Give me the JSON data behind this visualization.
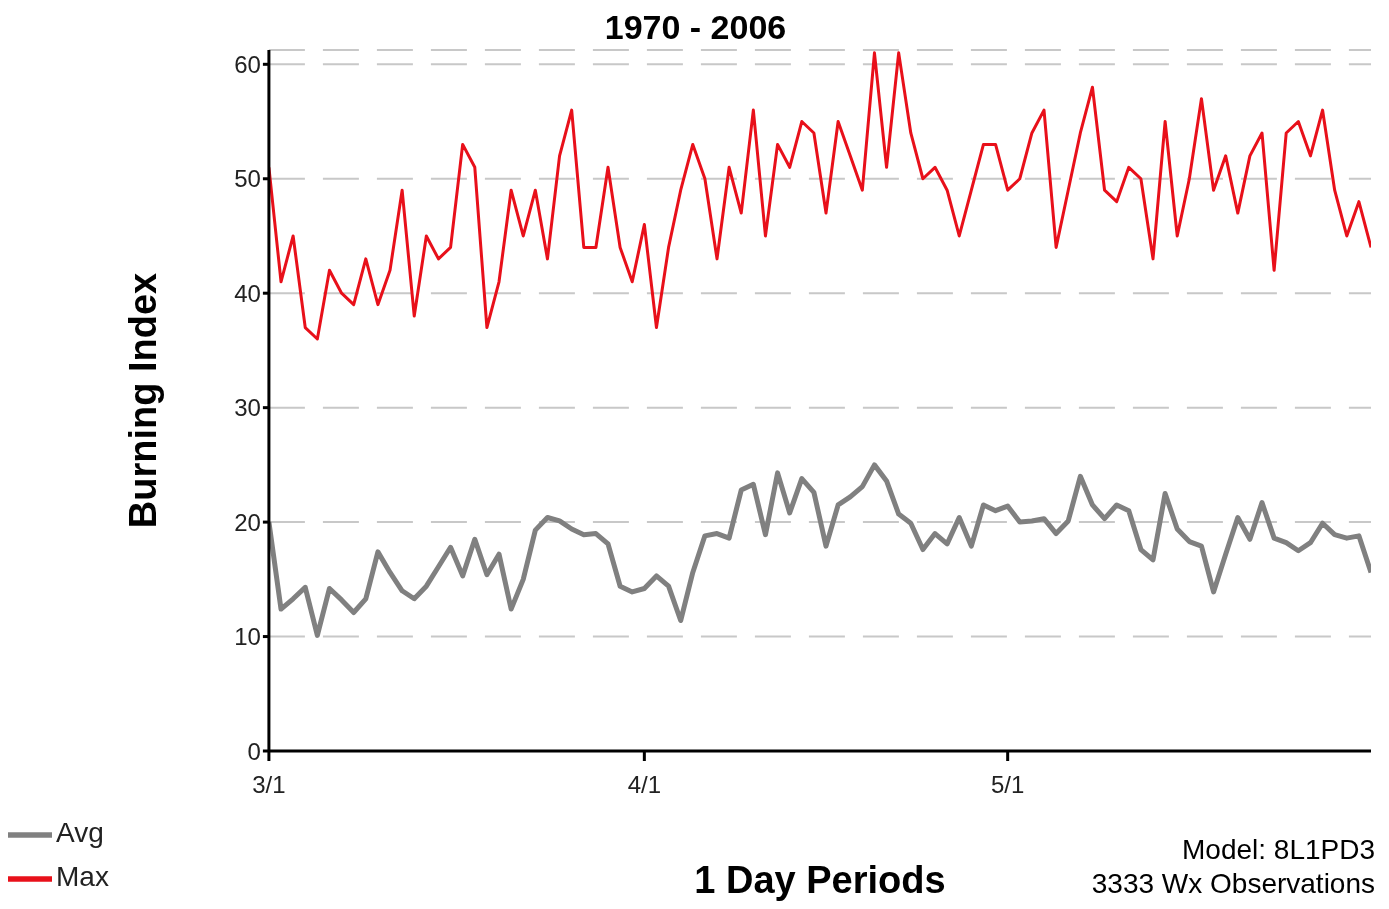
{
  "chart_data": {
    "type": "line",
    "title": "1970 - 2006",
    "xlabel": "1 Day Periods",
    "ylabel": "Burning Index",
    "annotations": [
      "Model: 8L1PD3",
      "3333 Wx Observations"
    ],
    "x": [
      "--03-01",
      "--03-02",
      "--03-03",
      "--03-04",
      "--03-05",
      "--03-06",
      "--03-07",
      "--03-08",
      "--03-09",
      "--03-10",
      "--03-11",
      "--03-12",
      "--03-13",
      "--03-14",
      "--03-15",
      "--03-16",
      "--03-17",
      "--03-18",
      "--03-19",
      "--03-20",
      "--03-21",
      "--03-22",
      "--03-23",
      "--03-24",
      "--03-25",
      "--03-26",
      "--03-27",
      "--03-28",
      "--03-29",
      "--03-30",
      "--03-31",
      "--04-01",
      "--04-02",
      "--04-03",
      "--04-04",
      "--04-05",
      "--04-06",
      "--04-07",
      "--04-08",
      "--04-09",
      "--04-10",
      "--04-11",
      "--04-12",
      "--04-13",
      "--04-14",
      "--04-15",
      "--04-16",
      "--04-17",
      "--04-18",
      "--04-19",
      "--04-20",
      "--04-21",
      "--04-22",
      "--04-23",
      "--04-24",
      "--04-25",
      "--04-26",
      "--04-27",
      "--04-28",
      "--04-29",
      "--04-30",
      "--05-01",
      "--05-02",
      "--05-03",
      "--05-04",
      "--05-05",
      "--05-06",
      "--05-07",
      "--05-08",
      "--05-09",
      "--05-10",
      "--05-11",
      "--05-12",
      "--05-13",
      "--05-14",
      "--05-15",
      "--05-16",
      "--05-17",
      "--05-18",
      "--05-19",
      "--05-20",
      "--05-21",
      "--05-22",
      "--05-23",
      "--05-24",
      "--05-25",
      "--05-26",
      "--05-27",
      "--05-28",
      "--05-29",
      "--05-30",
      "--05-31"
    ],
    "series": [
      {
        "name": "Avg",
        "color": "#808080",
        "values": [
          20,
          12.4,
          13.3,
          14.3,
          10.1,
          14.2,
          13.2,
          12.1,
          13.3,
          17.4,
          15.6,
          14.0,
          13.3,
          14.4,
          16.1,
          17.8,
          15.3,
          18.5,
          15.4,
          17.2,
          12.4,
          15.0,
          19.3,
          20.4,
          20.1,
          19.4,
          18.9,
          19.0,
          18.1,
          14.4,
          13.9,
          14.2,
          15.3,
          14.4,
          11.4,
          15.6,
          18.8,
          19.0,
          18.6,
          22.8,
          23.3,
          18.9,
          24.3,
          20.8,
          23.8,
          22.6,
          17.9,
          21.5,
          22.2,
          23.1,
          25.0,
          23.6,
          20.7,
          19.9,
          17.6,
          19.0,
          18.1,
          20.4,
          17.9,
          21.5,
          21.0,
          21.4,
          20.0,
          20.1,
          20.3,
          19.0,
          20.1,
          24.0,
          21.5,
          20.3,
          21.5,
          21.0,
          17.6,
          16.7,
          22.5,
          19.4,
          18.3,
          17.9,
          13.9,
          17.2,
          20.4,
          18.5,
          21.7,
          18.6,
          18.2,
          17.5,
          18.2,
          19.9,
          18.9,
          18.6,
          18.8,
          15.6
        ]
      },
      {
        "name": "Max",
        "color": "#e8101a",
        "values": [
          51,
          41,
          45,
          37,
          36,
          42,
          40,
          39,
          43,
          39,
          42,
          49,
          38,
          45,
          43,
          44,
          53,
          51,
          37,
          41,
          49,
          45,
          49,
          43,
          52,
          56,
          44,
          44,
          51,
          44,
          41,
          46,
          37,
          44,
          49,
          53,
          50,
          43,
          51,
          47,
          56,
          45,
          53,
          51,
          55,
          54,
          47,
          55,
          52,
          49,
          61,
          51,
          61,
          54,
          50,
          51,
          49,
          45,
          49,
          53,
          53,
          49,
          50,
          54,
          56,
          44,
          49,
          54,
          58,
          49,
          48,
          51,
          50,
          43,
          55,
          45,
          50,
          57,
          49,
          52,
          47,
          52,
          54,
          42,
          54,
          55,
          52,
          56,
          49,
          45,
          48,
          44
        ]
      }
    ],
    "xlim": [
      "--03-01",
      "--05-31"
    ],
    "xticks": [
      {
        "value": "--03-01",
        "label": "3/1"
      },
      {
        "value": "--04-01",
        "label": "4/1"
      },
      {
        "value": "--05-01",
        "label": "5/1"
      }
    ],
    "ylim": [
      0,
      61.25
    ],
    "yticks": [
      0,
      10,
      20,
      30,
      40,
      50,
      60
    ],
    "grid": "y",
    "legend": "bottom left",
    "marker": "none",
    "line_style": "solid"
  }
}
